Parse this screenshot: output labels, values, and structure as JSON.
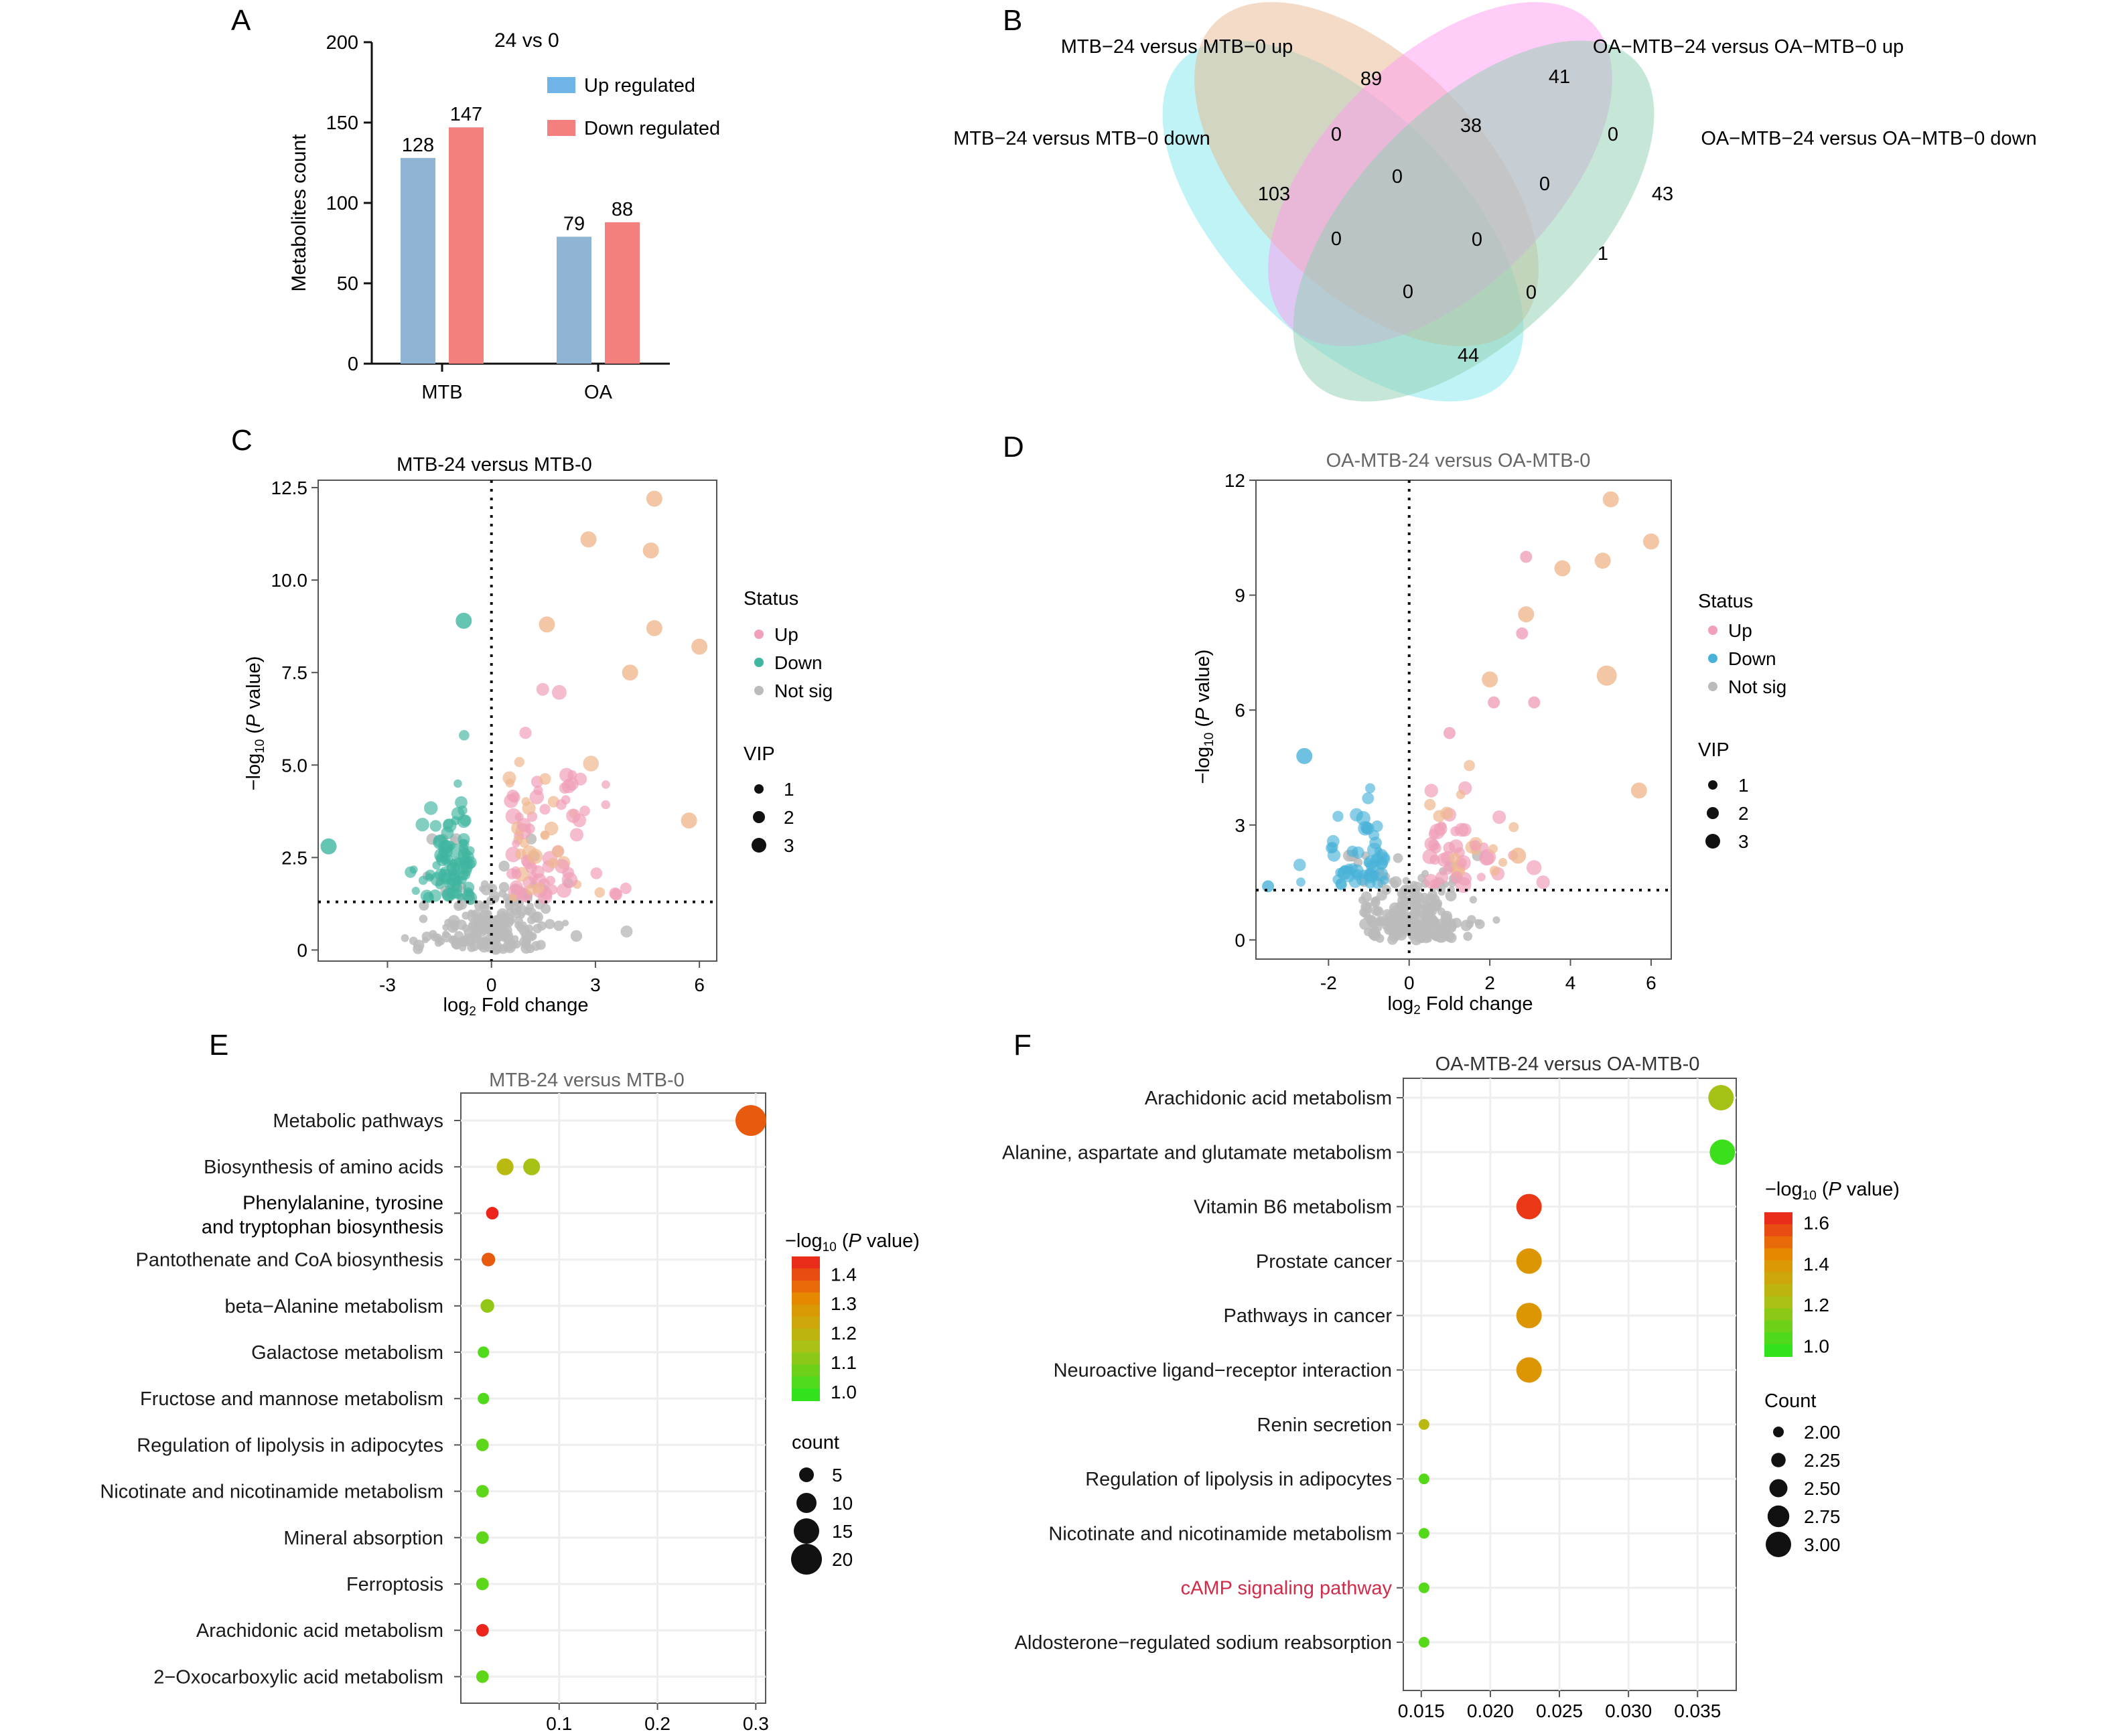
{
  "panel_letters": [
    "A",
    "B",
    "C",
    "D",
    "E",
    "F"
  ],
  "colors": {
    "up_bar": "#8fb4d4",
    "down_bar": "#f47f7f",
    "legend_up": "#6fb4e6",
    "legend_down": "#f47f7f",
    "up_point": "#f0a0b8",
    "down_point": "#3fb6a0",
    "down_point_d": "#4ab2d8",
    "notsig_point": "#bbbbbb"
  },
  "chart_data": [
    {
      "id": "A",
      "type": "bar",
      "title": "24 vs 0",
      "categories": [
        "MTB",
        "OA"
      ],
      "series": [
        {
          "name": "Up regulated",
          "values": [
            128,
            79
          ]
        },
        {
          "name": "Down regulated",
          "values": [
            147,
            88
          ]
        }
      ],
      "data_labels": [
        "128",
        "147",
        "79",
        "88"
      ],
      "ylabel": "Metabolites count",
      "ylim": [
        0,
        200
      ],
      "yticks": [
        0,
        50,
        100,
        150,
        200
      ],
      "legend_position": "top-right",
      "grid": false
    },
    {
      "id": "B",
      "type": "venn",
      "sets": [
        {
          "name": "MTB−24 versus MTB−0 down",
          "color": "#7fe7ee"
        },
        {
          "name": "MTB−24 versus MTB−0 up",
          "color": "#e7b88f"
        },
        {
          "name": "OA−MTB−24 versus OA−MTB−0 up",
          "color": "#ff9cf0"
        },
        {
          "name": "OA−MTB−24 versus OA−MTB−0 down",
          "color": "#8ecfb2"
        }
      ],
      "region_counts": [
        {
          "region": "MTB down only",
          "value": "103"
        },
        {
          "region": "MTB up only",
          "value": "89"
        },
        {
          "region": "OA up only",
          "value": "41"
        },
        {
          "region": "OA down only",
          "value": "43"
        },
        {
          "region": "MTB down & MTB up",
          "value": "0"
        },
        {
          "region": "MTB up & OA up",
          "value": "38"
        },
        {
          "region": "OA up & OA down",
          "value": "0"
        },
        {
          "region": "MTB down & MTB up & OA up",
          "value": "0"
        },
        {
          "region": "MTB up & OA up & OA down",
          "value": "0"
        },
        {
          "region": "MTB down & OA up",
          "value": "0"
        },
        {
          "region": "all four",
          "value": "0"
        },
        {
          "region": "MTB up & OA down",
          "value": "1"
        },
        {
          "region": "MTB down & OA up & OA down",
          "value": "0"
        },
        {
          "region": "MTB down & MTB up & OA down",
          "value": "0"
        },
        {
          "region": "MTB down & OA down",
          "value": "44"
        }
      ]
    },
    {
      "id": "C",
      "type": "scatter",
      "title": "MTB-24 versus MTB-0",
      "xlabel": "log₂ Fold change",
      "ylabel": "−log₁₀ (P value)",
      "xlim": [
        -5,
        6.5
      ],
      "ylim": [
        -0.3,
        12.7
      ],
      "xticks": [
        -3,
        0,
        3,
        6
      ],
      "yticks": [
        "0",
        "2.5",
        "5.0",
        "7.5",
        "10.0",
        "12.5"
      ],
      "ytick_values": [
        0,
        2.5,
        5,
        7.5,
        10,
        12.5
      ],
      "threshold_x": 0,
      "threshold_y": 1.3,
      "legend_status_title": "Status",
      "legend_status": [
        "Up",
        "Down",
        "Not sig"
      ],
      "legend_vip_title": "VIP",
      "legend_vip": [
        "1",
        "2",
        "3"
      ],
      "highlight_points": [
        {
          "x": 4.7,
          "y": 12.2,
          "status": "Up",
          "vip": 2
        },
        {
          "x": 2.8,
          "y": 11.1,
          "status": "Up",
          "vip": 2
        },
        {
          "x": 4.6,
          "y": 10.8,
          "status": "Up",
          "vip": 2
        },
        {
          "x": 1.6,
          "y": 8.8,
          "status": "Up",
          "vip": 2
        },
        {
          "x": 4.7,
          "y": 8.7,
          "status": "Up",
          "vip": 2
        },
        {
          "x": 6.0,
          "y": 8.2,
          "status": "Up",
          "vip": 2
        },
        {
          "x": 4.0,
          "y": 7.5,
          "status": "Up",
          "vip": 2
        },
        {
          "x": 5.7,
          "y": 3.5,
          "status": "Up",
          "vip": 2
        },
        {
          "x": -0.8,
          "y": 8.9,
          "status": "Down",
          "vip": 2
        },
        {
          "x": -4.7,
          "y": 2.8,
          "status": "Down",
          "vip": 2
        },
        {
          "x": 3.6,
          "y": 1.5,
          "status": "Up",
          "vip": 1
        },
        {
          "x": 3.9,
          "y": 0.5,
          "status": "Not sig",
          "vip": 1
        }
      ],
      "cluster_counts": {
        "up": 90,
        "down": 85,
        "notsig": 220
      }
    },
    {
      "id": "D",
      "type": "scatter",
      "title": "OA-MTB-24 versus OA-MTB-0",
      "xlabel": "log₂ Fold change",
      "ylabel": "−log₁₀ (P value)",
      "xlim": [
        -3.8,
        6.5
      ],
      "ylim": [
        -0.5,
        12
      ],
      "xticks": [
        -2,
        0,
        2,
        4,
        6
      ],
      "yticks": [
        "0",
        "3",
        "6",
        "9",
        "12"
      ],
      "ytick_values": [
        0,
        3,
        6,
        9,
        12
      ],
      "threshold_x": 0,
      "threshold_y": 1.3,
      "legend_status_title": "Status",
      "legend_status": [
        "Up",
        "Down",
        "Not sig"
      ],
      "legend_vip_title": "VIP",
      "legend_vip": [
        "1",
        "2",
        "3"
      ],
      "highlight_points": [
        {
          "x": 5.0,
          "y": 11.5,
          "status": "Up",
          "vip": 2
        },
        {
          "x": 6.0,
          "y": 10.4,
          "status": "Up",
          "vip": 2
        },
        {
          "x": 2.9,
          "y": 10.0,
          "status": "Up",
          "vip": 1
        },
        {
          "x": 4.8,
          "y": 9.9,
          "status": "Up",
          "vip": 2
        },
        {
          "x": 3.8,
          "y": 9.7,
          "status": "Up",
          "vip": 2
        },
        {
          "x": 2.9,
          "y": 8.5,
          "status": "Up",
          "vip": 2
        },
        {
          "x": 2.8,
          "y": 8.0,
          "status": "Up",
          "vip": 1
        },
        {
          "x": 4.9,
          "y": 6.9,
          "status": "Up",
          "vip": 3
        },
        {
          "x": 2.0,
          "y": 6.8,
          "status": "Up",
          "vip": 2
        },
        {
          "x": 3.1,
          "y": 6.2,
          "status": "Up",
          "vip": 1
        },
        {
          "x": 2.1,
          "y": 6.2,
          "status": "Up",
          "vip": 1
        },
        {
          "x": 5.7,
          "y": 3.9,
          "status": "Up",
          "vip": 2
        },
        {
          "x": 2.7,
          "y": 2.2,
          "status": "Up",
          "vip": 2
        },
        {
          "x": -2.6,
          "y": 4.8,
          "status": "Down",
          "vip": 2
        },
        {
          "x": -3.5,
          "y": 1.4,
          "status": "Down",
          "vip": 1
        },
        {
          "x": 1.0,
          "y": 5.4,
          "status": "Up",
          "vip": 1
        }
      ],
      "cluster_counts": {
        "up": 55,
        "down": 60,
        "notsig": 240
      }
    },
    {
      "id": "E",
      "type": "scatter",
      "subtype": "dot_plot",
      "title": "MTB-24 versus MTB-0",
      "xlim": [
        0.0,
        0.31
      ],
      "xticks": [
        "0.1",
        "0.2",
        "0.3"
      ],
      "xtick_values": [
        0.1,
        0.2,
        0.3
      ],
      "categories": [
        "Metabolic pathways",
        "Biosynthesis of amino acids",
        "Phenylalanine, tyrosine|and tryptophan biosynthesis",
        "Pantothenate and CoA biosynthesis",
        "beta−Alanine metabolism",
        "Galactose metabolism",
        "Fructose and mannose metabolism",
        "Regulation of lipolysis in adipocytes",
        "Nicotinate and nicotinamide metabolism",
        "Mineral absorption",
        "Ferroptosis",
        "Arachidonic acid metabolism",
        "2−Oxocarboxylic acid metabolism"
      ],
      "points": [
        {
          "row": 0,
          "x": 0.295,
          "logp": 1.38,
          "count": 20
        },
        {
          "row": 1,
          "x": 0.045,
          "logp": 1.18,
          "count": 7
        },
        {
          "row": 1,
          "x": 0.072,
          "logp": 1.15,
          "count": 7
        },
        {
          "row": 2,
          "x": 0.032,
          "logp": 1.45,
          "count": 3
        },
        {
          "row": 3,
          "x": 0.028,
          "logp": 1.38,
          "count": 4
        },
        {
          "row": 4,
          "x": 0.027,
          "logp": 1.12,
          "count": 4
        },
        {
          "row": 5,
          "x": 0.023,
          "logp": 1.03,
          "count": 2
        },
        {
          "row": 6,
          "x": 0.023,
          "logp": 1.03,
          "count": 2
        },
        {
          "row": 7,
          "x": 0.022,
          "logp": 1.05,
          "count": 3
        },
        {
          "row": 8,
          "x": 0.022,
          "logp": 1.05,
          "count": 3
        },
        {
          "row": 9,
          "x": 0.022,
          "logp": 1.05,
          "count": 3
        },
        {
          "row": 10,
          "x": 0.022,
          "logp": 1.05,
          "count": 3
        },
        {
          "row": 11,
          "x": 0.022,
          "logp": 1.45,
          "count": 3
        },
        {
          "row": 12,
          "x": 0.022,
          "logp": 1.05,
          "count": 3
        }
      ],
      "color_legend_title": "−log₁₀ (P value)",
      "color_ticks": [
        "1.4",
        "1.3",
        "1.2",
        "1.1",
        "1.0"
      ],
      "color_range": [
        0.97,
        1.46
      ],
      "size_legend_title": "count",
      "size_legend": [
        "5",
        "10",
        "15",
        "20"
      ],
      "size_values": [
        5,
        10,
        15,
        20
      ]
    },
    {
      "id": "F",
      "type": "scatter",
      "subtype": "dot_plot",
      "title": "OA-MTB-24 versus OA-MTB-0",
      "xlim": [
        0.0137,
        0.0378
      ],
      "xticks": [
        "0.015",
        "0.020",
        "0.025",
        "0.030",
        "0.035"
      ],
      "xtick_values": [
        0.015,
        0.02,
        0.025,
        0.03,
        0.035
      ],
      "categories": [
        "Arachidonic acid metabolism",
        "Alanine, aspartate and glutamate metabolism",
        "Vitamin B6 metabolism",
        "Prostate cancer",
        "Pathways in cancer",
        "Neuroactive ligand−receptor interaction",
        "Renin secretion",
        "Regulation of lipolysis in adipocytes",
        "Nicotinate and nicotinamide metabolism",
        "cAMP signaling pathway",
        "Aldosterone−regulated sodium reabsorption"
      ],
      "highlight_category": 9,
      "highlight_color": "#d22b4a",
      "points": [
        {
          "row": 0,
          "x": 0.0367,
          "logp": 1.2,
          "count": 3
        },
        {
          "row": 1,
          "x": 0.0368,
          "logp": 1.0,
          "count": 3
        },
        {
          "row": 2,
          "x": 0.0228,
          "logp": 1.6,
          "count": 3
        },
        {
          "row": 3,
          "x": 0.0228,
          "logp": 1.4,
          "count": 3
        },
        {
          "row": 4,
          "x": 0.0228,
          "logp": 1.4,
          "count": 3
        },
        {
          "row": 5,
          "x": 0.0228,
          "logp": 1.4,
          "count": 3
        },
        {
          "row": 6,
          "x": 0.0152,
          "logp": 1.25,
          "count": 2
        },
        {
          "row": 7,
          "x": 0.0152,
          "logp": 1.05,
          "count": 2
        },
        {
          "row": 8,
          "x": 0.0152,
          "logp": 1.05,
          "count": 2
        },
        {
          "row": 9,
          "x": 0.0152,
          "logp": 1.05,
          "count": 2
        },
        {
          "row": 10,
          "x": 0.0152,
          "logp": 1.05,
          "count": 2
        }
      ],
      "color_legend_title": "−log₁₀ (P value)",
      "color_ticks": [
        "1.6",
        "1.4",
        "1.2",
        "1.0"
      ],
      "color_range": [
        0.95,
        1.65
      ],
      "size_legend_title": "Count",
      "size_legend": [
        "2.00",
        "2.25",
        "2.50",
        "2.75",
        "3.00"
      ],
      "size_values": [
        2.0,
        2.25,
        2.5,
        2.75,
        3.0
      ]
    }
  ]
}
